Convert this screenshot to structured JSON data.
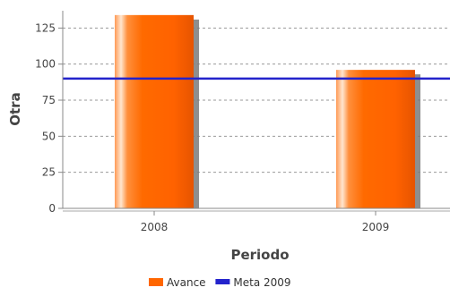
{
  "chart_data": {
    "type": "bar",
    "title": "",
    "xlabel": "Periodo",
    "ylabel": "Otra",
    "categories": [
      "2008",
      "2009"
    ],
    "series": [
      {
        "name": "Avance",
        "kind": "bar",
        "values": [
          134,
          96
        ],
        "color": "#ff6600"
      },
      {
        "name": "Meta 2009",
        "kind": "line",
        "value": 90,
        "color": "#2323cc"
      }
    ],
    "ylim": [
      0,
      137
    ],
    "yticks": [
      0,
      25,
      50,
      75,
      100,
      125
    ],
    "grid": true,
    "grid_style": "dashed",
    "legend_position": "bottom-center"
  }
}
